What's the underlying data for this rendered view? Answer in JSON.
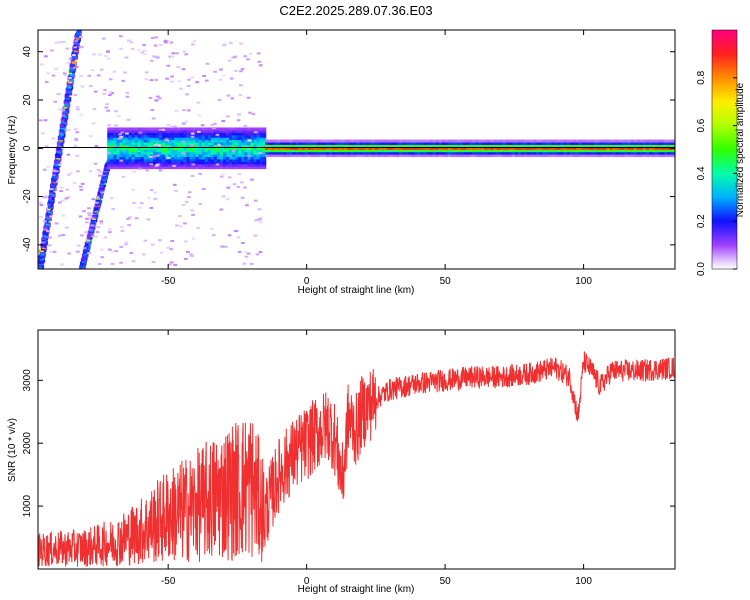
{
  "title": "C2E2.2025.289.07.36.E03",
  "colors": {
    "snr_line": "#f03030",
    "tuned_line": "#000000",
    "axis": "#000000"
  },
  "chart_data": [
    {
      "type": "heatmap",
      "xlabel": "Height of straight line (km)",
      "ylabel": "Frequency (Hz)",
      "xlim": [
        -97,
        133
      ],
      "ylim": [
        -50,
        49
      ],
      "xticks": [
        -50,
        0,
        50,
        100
      ],
      "yticks": [
        -40,
        -20,
        0,
        20,
        40
      ],
      "colorbar": {
        "label": "Normalized spectral amplitude",
        "range": [
          0,
          1
        ],
        "ticks": [
          0.0,
          0.2,
          0.4,
          0.6,
          0.8
        ],
        "colormap": "rainbow (purple to red)"
      },
      "features": [
        {
          "kind": "diagonal streak",
          "height_start": -97,
          "freq_start": -50,
          "height_end": -83,
          "freq_end": 49
        },
        {
          "kind": "diagonal streak",
          "height_start": -82,
          "freq_start": -50,
          "height_end": -72,
          "freq_end": -4
        },
        {
          "kind": "noisy band",
          "height_start": -72,
          "height_end": -15,
          "center_freq": 0,
          "half_width": 8
        },
        {
          "kind": "narrow band",
          "height_start": -15,
          "height_end": 133,
          "center_freq": 0,
          "half_width": 3
        }
      ]
    },
    {
      "type": "line",
      "xlabel": "Height of straight line (km)",
      "ylabel": "SNR (10 * v/v)",
      "xlim": [
        -97,
        133
      ],
      "ylim": [
        0,
        3800
      ],
      "xticks": [
        -50,
        0,
        50,
        100
      ],
      "yticks": [
        1000,
        2000,
        3000
      ],
      "series": [
        {
          "x": [
            -97,
            -90,
            -80,
            -70,
            -60,
            -50,
            -40,
            -30,
            -20,
            -15,
            -10,
            -5,
            0,
            5,
            8,
            10,
            13,
            15,
            18,
            20,
            25,
            30,
            40,
            50,
            60,
            70,
            80,
            90,
            95,
            98,
            100,
            103,
            106,
            110,
            120,
            133
          ],
          "y": [
            300,
            320,
            340,
            420,
            600,
            850,
            1000,
            1200,
            1350,
            900,
            1500,
            1800,
            2000,
            2200,
            2300,
            2100,
            1400,
            2400,
            2200,
            2500,
            2700,
            2850,
            2950,
            3000,
            3050,
            3050,
            3100,
            3200,
            3050,
            2400,
            3300,
            3150,
            2900,
            3150,
            3150,
            3200
          ]
        }
      ]
    }
  ]
}
